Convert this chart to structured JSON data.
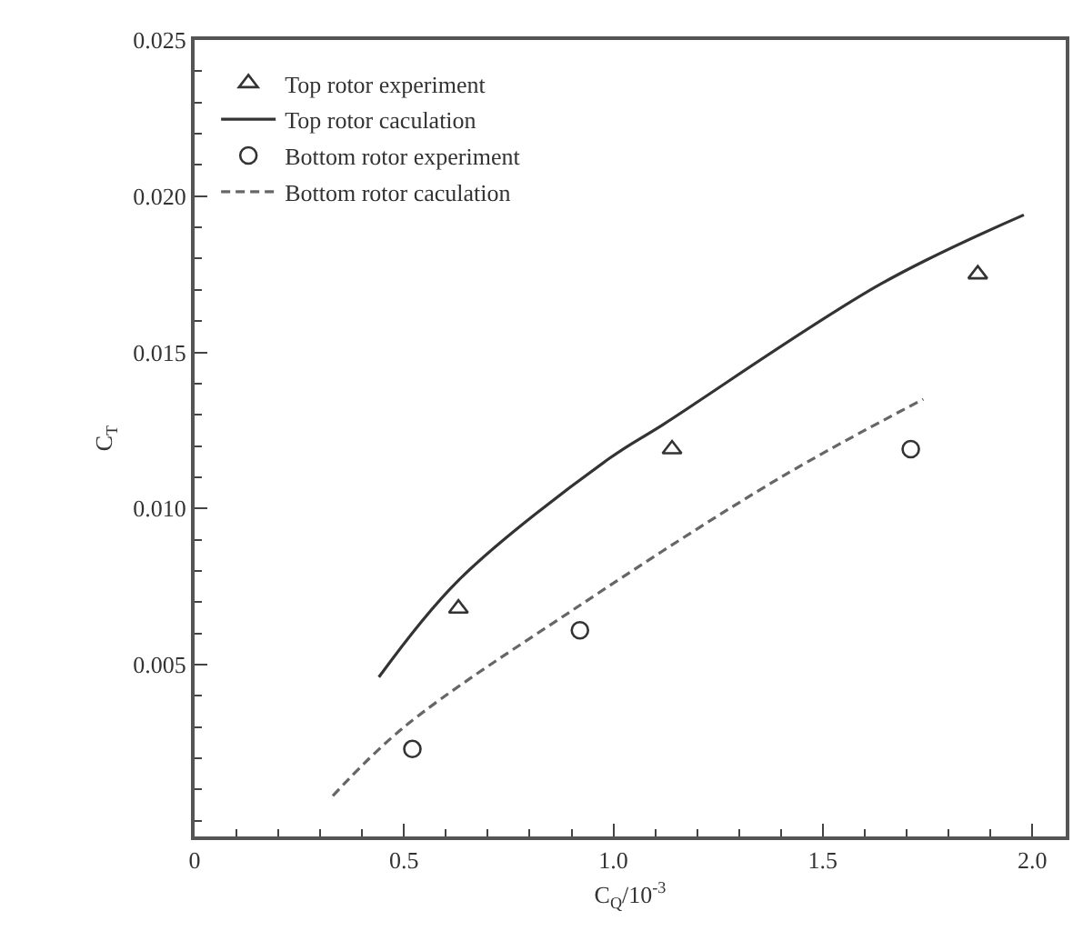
{
  "chart_data": {
    "type": "scatter",
    "xlabel": "C$_{Q}$/10$^{-3}$",
    "ylabel": "C$_{T}$",
    "xlim": [
      0,
      2.08
    ],
    "ylim": [
      -0.0005,
      0.025
    ],
    "xticks": [
      0,
      0.5,
      {
        "value": 1,
        "label": "1.0"
      },
      1.5,
      {
        "value": 2,
        "label": "2.0"
      }
    ],
    "yticks": [
      0.005,
      {
        "value": 0.01,
        "label": "0.010"
      },
      0.015,
      {
        "value": 0.02,
        "label": "0.020"
      },
      0.025
    ],
    "grid": false,
    "legend": "top left",
    "series": [
      {
        "name": "Top rotor experiment",
        "marker": "triangle",
        "color": "#333333",
        "x": [
          0.63,
          1.14,
          1.87
        ],
        "values": [
          0.0068,
          0.0119,
          0.0175
        ]
      },
      {
        "name": "Top rotor caculation",
        "type": "line",
        "marker": "none",
        "line_style": "solid",
        "color": "#333333",
        "x": [
          0.44,
          0.63,
          0.99,
          1.12,
          1.64,
          1.98
        ],
        "values": [
          0.0046,
          0.0077,
          0.0116,
          0.0127,
          0.0172,
          0.0194
        ]
      },
      {
        "name": "Bottom rotor experiment",
        "marker": "circle",
        "color": "#333333",
        "x": [
          0.52,
          0.92,
          1.71
        ],
        "values": [
          0.0023,
          0.0061,
          0.0119
        ]
      },
      {
        "name": "Bottom rotor caculation",
        "type": "line",
        "marker": "none",
        "line_style": "dashed",
        "color": "#666666",
        "x": [
          0.33,
          0.5,
          0.92,
          1.4,
          1.74
        ],
        "values": [
          0.0008,
          0.003,
          0.0069,
          0.011,
          0.0135
        ]
      }
    ]
  }
}
